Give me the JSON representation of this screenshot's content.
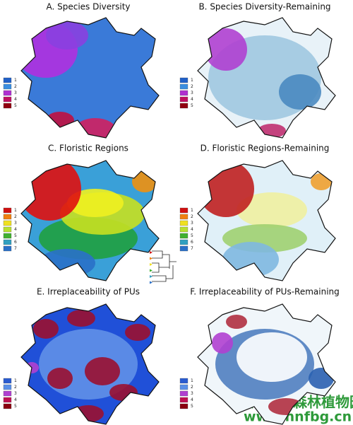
{
  "panels": [
    {
      "title": "A. Species Diversity",
      "legend": [
        "1",
        "2",
        "3",
        "4",
        "5"
      ]
    },
    {
      "title": "B. Species Diversity-Remaining",
      "legend": [
        "1",
        "2",
        "3",
        "4",
        "5"
      ]
    },
    {
      "title": "C. Floristic Regions",
      "legend": [
        "1",
        "2",
        "3",
        "4",
        "5",
        "6",
        "7"
      ]
    },
    {
      "title": "D. Floristic Regions-Remaining",
      "legend": [
        "1",
        "2",
        "3",
        "4",
        "5",
        "6",
        "7"
      ]
    },
    {
      "title": "E. Irreplaceability of PUs",
      "legend": [
        "1",
        "2",
        "3",
        "4",
        "5"
      ]
    },
    {
      "title": "F. Irreplaceability of PUs-Remaining",
      "legend": [
        "1",
        "2",
        "3",
        "4",
        "5"
      ]
    }
  ],
  "watermark": {
    "name": "湖南省森林植物园",
    "url": "www.hnfbg.cn"
  }
}
